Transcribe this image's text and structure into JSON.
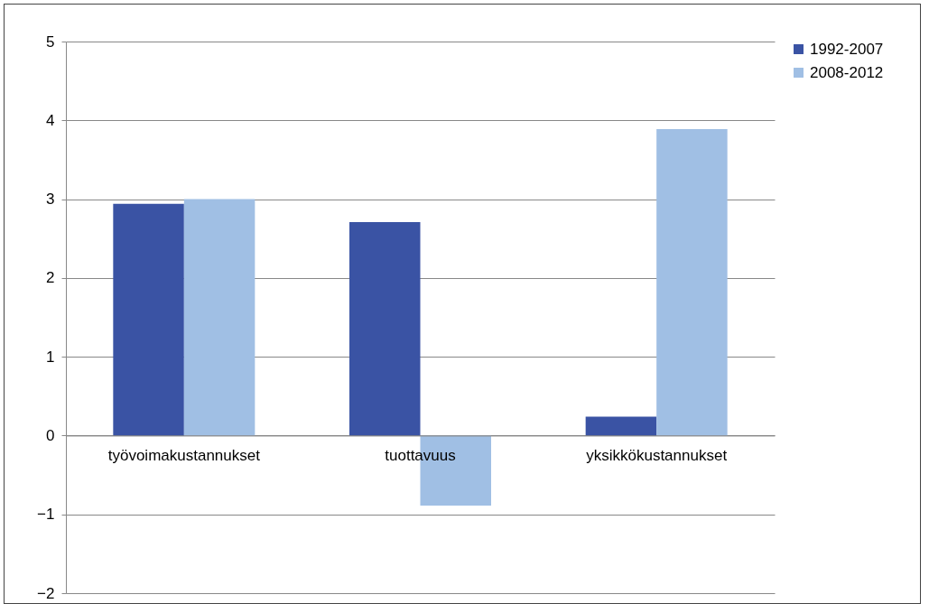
{
  "chart_data": {
    "type": "bar",
    "categories": [
      "työvoimakustannukset",
      "tuottavuus",
      "yksikkökustannukset"
    ],
    "series": [
      {
        "name": "1992-2007",
        "color": "#3a53a4",
        "values": [
          2.94,
          2.71,
          0.24
        ]
      },
      {
        "name": "2008-2012",
        "color": "#a0bfe4",
        "values": [
          3.0,
          -0.89,
          3.89
        ]
      }
    ],
    "ylim": [
      -2,
      5
    ],
    "yticks": [
      -2,
      -1,
      0,
      1,
      2,
      3,
      4,
      5
    ],
    "grid": "y",
    "legend": "right"
  }
}
